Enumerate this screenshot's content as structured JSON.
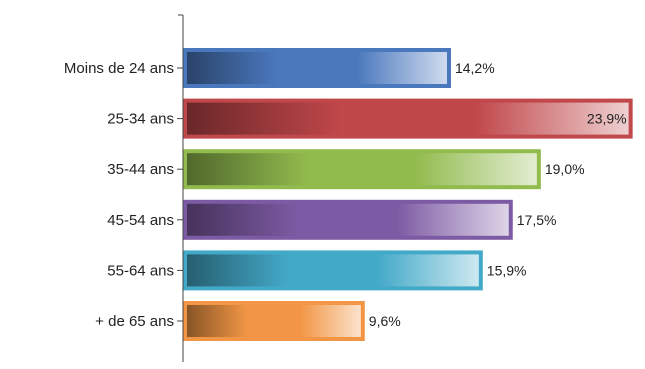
{
  "chart_data": {
    "type": "bar",
    "orientation": "horizontal",
    "categories": [
      "Moins de 24 ans",
      "25-34 ans",
      "35-44 ans",
      "45-54 ans",
      "55-64 ans",
      "+ de 65 ans"
    ],
    "values": [
      14.2,
      23.9,
      19.0,
      17.5,
      15.9,
      9.6
    ],
    "value_labels": [
      "14,2%",
      "23,9%",
      "19,0%",
      "17,5%",
      "15,9%",
      "9,6%"
    ],
    "colors": [
      "#4a78bd",
      "#c0474a",
      "#92bb4e",
      "#7d5ba4",
      "#43a9c8",
      "#f29645"
    ],
    "xlim": [
      0,
      24.4
    ],
    "grid": false,
    "legend": "none"
  }
}
